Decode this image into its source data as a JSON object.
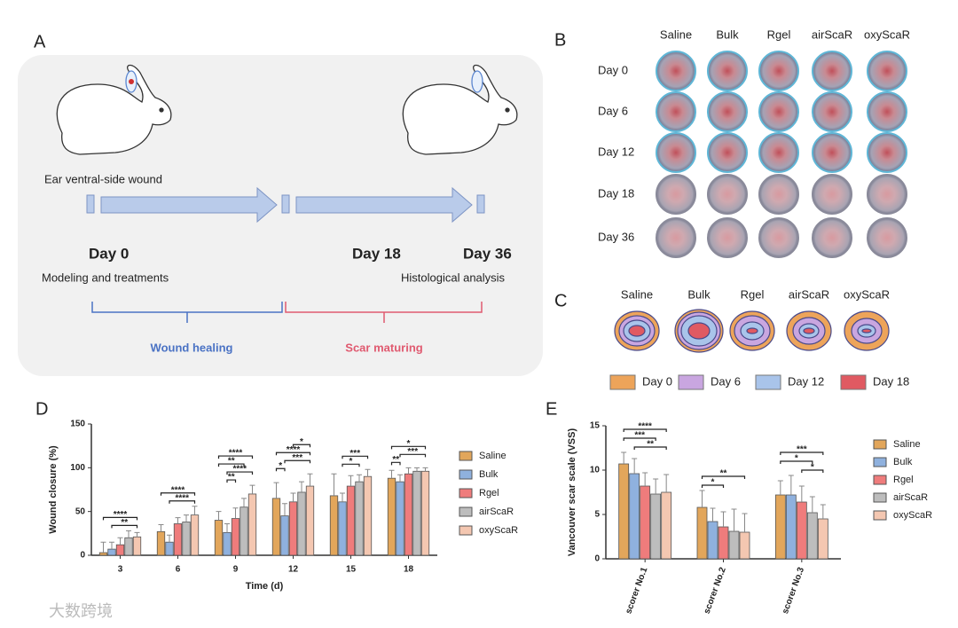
{
  "watermark": "大数跨境",
  "panel_a": {
    "label": "A",
    "wound": "Ear ventral-side wound",
    "days": [
      "Day 0",
      "Day 18",
      "Day 36"
    ],
    "steps": [
      "Modeling and treatments",
      "Histological analysis"
    ],
    "phases": [
      "Wound healing",
      "Scar maturing"
    ]
  },
  "panel_b": {
    "label": "B",
    "columns": [
      "Saline",
      "Bulk",
      "Rgel",
      "airScaR",
      "oxyScaR"
    ],
    "rows": [
      "Day 0",
      "Day 6",
      "Day 12",
      "Day 18",
      "Day 36"
    ]
  },
  "panel_c": {
    "label": "C",
    "columns": [
      "Saline",
      "Bulk",
      "Rgel",
      "airScaR",
      "oxyScaR"
    ],
    "legend": [
      {
        "name": "Day 0",
        "color": "#eda45a"
      },
      {
        "name": "Day 6",
        "color": "#c9a6e0"
      },
      {
        "name": "Day 12",
        "color": "#a9c4ea"
      },
      {
        "name": "Day 18",
        "color": "#e05a62"
      }
    ]
  },
  "chart_data": [
    {
      "type": "bar",
      "label": "D",
      "xlabel": "Time (d)",
      "ylabel": "Wound closure (%)",
      "categories": [
        "3",
        "6",
        "9",
        "12",
        "15",
        "18"
      ],
      "ylim": [
        0,
        150
      ],
      "yticks": [
        0,
        50,
        100,
        150
      ],
      "legend": "right",
      "series": [
        {
          "name": "Saline",
          "color": "#e2a65b",
          "values": [
            3,
            27,
            40,
            65,
            68,
            88
          ],
          "errors": [
            12,
            8,
            10,
            18,
            25,
            9
          ]
        },
        {
          "name": "Bulk",
          "color": "#8fb1de",
          "values": [
            7,
            15,
            26,
            45,
            61,
            84
          ],
          "errors": [
            8,
            8,
            10,
            14,
            10,
            8
          ]
        },
        {
          "name": "Rgel",
          "color": "#ef7c7c",
          "values": [
            12,
            36,
            42,
            61,
            79,
            93
          ],
          "errors": [
            8,
            7,
            12,
            10,
            12,
            7
          ]
        },
        {
          "name": "airScaR",
          "color": "#bdbdbd",
          "values": [
            20,
            38,
            55,
            72,
            84,
            96
          ],
          "errors": [
            8,
            8,
            10,
            12,
            8,
            4
          ]
        },
        {
          "name": "oxyScaR",
          "color": "#f4c7b1",
          "values": [
            21,
            46,
            70,
            79,
            90,
            96
          ],
          "errors": [
            5,
            10,
            10,
            14,
            8,
            4
          ]
        }
      ],
      "annotations": [
        {
          "label": "**",
          "category": 0,
          "between": [
            1,
            4
          ]
        },
        {
          "label": "****",
          "category": 0,
          "between": [
            0,
            4
          ]
        },
        {
          "label": "****",
          "category": 1,
          "between": [
            1,
            4
          ]
        },
        {
          "label": "****",
          "category": 1,
          "between": [
            0,
            4
          ]
        },
        {
          "label": "**",
          "category": 2,
          "between": [
            1,
            2
          ]
        },
        {
          "label": "****",
          "category": 2,
          "between": [
            1,
            4
          ]
        },
        {
          "label": "**",
          "category": 2,
          "between": [
            0,
            3
          ]
        },
        {
          "label": "****",
          "category": 2,
          "between": [
            0,
            4
          ]
        },
        {
          "label": "*",
          "category": 3,
          "between": [
            0,
            1
          ]
        },
        {
          "label": "***",
          "category": 3,
          "between": [
            1,
            4
          ]
        },
        {
          "label": "****",
          "category": 3,
          "between": [
            0,
            4
          ]
        },
        {
          "label": "*",
          "category": 3,
          "between": [
            2,
            4
          ]
        },
        {
          "label": "*",
          "category": 4,
          "between": [
            1,
            3
          ]
        },
        {
          "label": "***",
          "category": 4,
          "between": [
            1,
            4
          ]
        },
        {
          "label": "**",
          "category": 5,
          "between": [
            0,
            1
          ]
        },
        {
          "label": "***",
          "category": 5,
          "between": [
            1,
            4
          ]
        },
        {
          "label": "*",
          "category": 5,
          "between": [
            0,
            4
          ]
        }
      ]
    },
    {
      "type": "bar",
      "label": "E",
      "ylabel": "Vancouver scar scale (VSS)",
      "categories": [
        "scorer No.1",
        "scorer No.2",
        "scorer No.3"
      ],
      "ylim": [
        0,
        15
      ],
      "yticks": [
        0,
        5,
        10,
        15
      ],
      "legend": "right",
      "series": [
        {
          "name": "Saline",
          "color": "#e2a65b",
          "values": [
            10.7,
            5.8,
            7.2
          ],
          "errors": [
            1.3,
            1.9,
            1.6
          ]
        },
        {
          "name": "Bulk",
          "color": "#8fb1de",
          "values": [
            9.6,
            4.2,
            7.2
          ],
          "errors": [
            1.7,
            1.5,
            2.2
          ]
        },
        {
          "name": "Rgel",
          "color": "#ef7c7c",
          "values": [
            8.2,
            3.6,
            6.4
          ],
          "errors": [
            1.5,
            1.7,
            1.8
          ]
        },
        {
          "name": "airScaR",
          "color": "#bdbdbd",
          "values": [
            7.3,
            3.1,
            5.2
          ],
          "errors": [
            1.7,
            2.5,
            1.8
          ]
        },
        {
          "name": "oxyScaR",
          "color": "#f4c7b1",
          "values": [
            7.5,
            3.0,
            4.5
          ],
          "errors": [
            2.0,
            2.1,
            1.6
          ]
        }
      ],
      "annotations": [
        {
          "label": "**",
          "category": 0,
          "between": [
            1,
            4
          ]
        },
        {
          "label": "***",
          "category": 0,
          "between": [
            0,
            3
          ]
        },
        {
          "label": "****",
          "category": 0,
          "between": [
            0,
            4
          ]
        },
        {
          "label": "*",
          "category": 1,
          "between": [
            0,
            2
          ]
        },
        {
          "label": "**",
          "category": 1,
          "between": [
            0,
            4
          ]
        },
        {
          "label": "*",
          "category": 2,
          "between": [
            2,
            4
          ]
        },
        {
          "label": "*",
          "category": 2,
          "between": [
            0,
            3
          ]
        },
        {
          "label": "***",
          "category": 2,
          "between": [
            0,
            4
          ]
        }
      ]
    }
  ]
}
